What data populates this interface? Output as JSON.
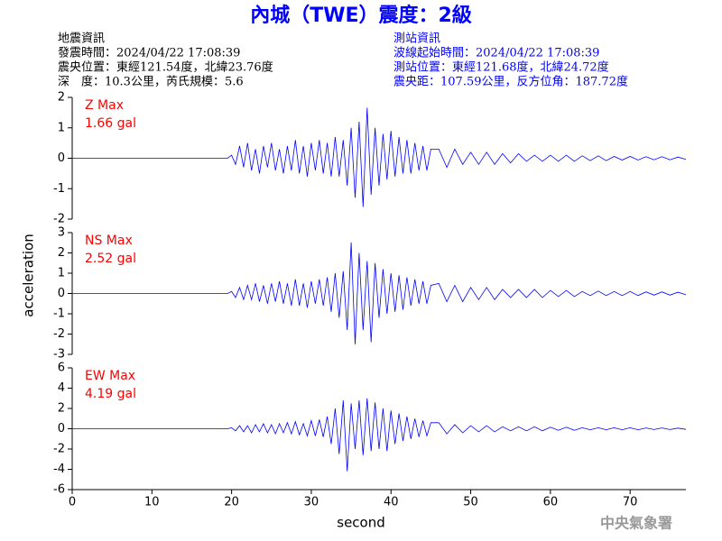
{
  "title": "內城（TWE）震度：2級",
  "quake_info": [
    "地震資訊",
    "發震時間：2024/04/22 17:08:39",
    "震央位置：東經121.54度，北緯23.76度",
    "深　度：10.3公里，芮氏規模：5.6"
  ],
  "station_info": [
    "測站資訊",
    "波線起始時間：2024/04/22 17:08:39",
    "測站位置：東經121.68度，北緯24.72度",
    "震央距：107.59公里，反方位角：187.72度"
  ],
  "footer": "中央氣象署",
  "chart_data": [
    {
      "type": "line",
      "label": "Z Max",
      "max_label": "1.66 gal",
      "color": "#0000ff",
      "label_color": "#ff0000",
      "x": [
        0,
        19.5,
        20,
        20.5,
        21,
        21.5,
        22,
        22.5,
        23,
        23.5,
        24,
        24.5,
        25,
        25.5,
        26,
        26.5,
        27,
        27.5,
        28,
        28.5,
        29,
        29.5,
        30,
        30.5,
        31,
        31.5,
        32,
        32.5,
        33,
        33.5,
        34,
        34.5,
        35,
        35.5,
        36,
        36.5,
        37,
        37.5,
        38,
        38.5,
        39,
        39.5,
        40,
        40.5,
        41,
        41.5,
        42,
        42.5,
        43,
        43.5,
        44,
        44.5,
        45,
        46,
        47,
        48,
        49,
        50,
        51,
        52,
        53,
        54,
        55,
        56,
        57,
        58,
        59,
        60,
        61,
        62,
        63,
        64,
        65,
        66,
        67,
        68,
        69,
        70,
        71,
        72,
        73,
        74,
        75,
        76,
        77
      ],
      "values": [
        0,
        0,
        0.1,
        -0.2,
        0.4,
        -0.3,
        0.5,
        -0.4,
        0.3,
        -0.5,
        0.4,
        -0.3,
        0.5,
        -0.4,
        0.3,
        -0.5,
        0.4,
        -0.4,
        0.6,
        -0.5,
        0.4,
        -0.6,
        0.5,
        -0.4,
        0.6,
        -0.5,
        0.5,
        -0.6,
        0.7,
        -0.6,
        0.6,
        -0.9,
        1.0,
        -1.3,
        1.2,
        -1.6,
        1.66,
        -1.2,
        1.0,
        -0.9,
        0.8,
        -0.7,
        0.9,
        -0.6,
        0.7,
        -0.5,
        0.6,
        -0.5,
        0.5,
        -0.4,
        0.4,
        -0.4,
        0.3,
        0.3,
        -0.3,
        0.3,
        -0.2,
        0.2,
        -0.2,
        0.2,
        -0.2,
        0.15,
        -0.15,
        0.15,
        -0.1,
        0.1,
        -0.1,
        0.1,
        -0.1,
        0.1,
        -0.1,
        0.08,
        -0.08,
        0.08,
        -0.08,
        0.06,
        -0.06,
        0.06,
        -0.06,
        0.05,
        -0.05,
        0.05,
        -0.05,
        0.04,
        -0.04
      ],
      "xlim": [
        0,
        77
      ],
      "ylim": [
        -2,
        2
      ],
      "yticks": [
        -2,
        -1,
        0,
        1,
        2
      ]
    },
    {
      "type": "line",
      "label": "NS Max",
      "max_label": "2.52 gal",
      "color": "#0000ff",
      "label_color": "#ff0000",
      "ylabel": "acceleration",
      "x": [
        0,
        19.5,
        20,
        20.5,
        21,
        21.5,
        22,
        22.5,
        23,
        23.5,
        24,
        24.5,
        25,
        25.5,
        26,
        26.5,
        27,
        27.5,
        28,
        28.5,
        29,
        29.5,
        30,
        30.5,
        31,
        31.5,
        32,
        32.5,
        33,
        33.5,
        34,
        34.5,
        35,
        35.5,
        36,
        36.5,
        37,
        37.5,
        38,
        38.5,
        39,
        39.5,
        40,
        40.5,
        41,
        41.5,
        42,
        42.5,
        43,
        43.5,
        44,
        44.5,
        45,
        46,
        47,
        48,
        49,
        50,
        51,
        52,
        53,
        54,
        55,
        56,
        57,
        58,
        59,
        60,
        61,
        62,
        63,
        64,
        65,
        66,
        67,
        68,
        69,
        70,
        71,
        72,
        73,
        74,
        75,
        76,
        77
      ],
      "values": [
        0,
        0,
        0.1,
        -0.2,
        0.3,
        -0.3,
        0.4,
        -0.3,
        0.5,
        -0.4,
        0.4,
        -0.5,
        0.5,
        -0.4,
        0.6,
        -0.5,
        0.5,
        -0.6,
        0.7,
        -0.6,
        0.5,
        -0.7,
        0.6,
        -0.5,
        0.7,
        -0.6,
        0.8,
        -0.9,
        1.0,
        -1.2,
        1.1,
        -1.8,
        2.52,
        -2.5,
        2.0,
        -1.8,
        1.6,
        -2.4,
        1.5,
        -1.2,
        1.2,
        -1.0,
        1.0,
        -0.9,
        0.9,
        -0.8,
        0.8,
        -0.6,
        0.7,
        -0.5,
        0.6,
        -0.5,
        0.4,
        0.5,
        -0.4,
        0.4,
        -0.4,
        0.3,
        -0.3,
        0.3,
        -0.3,
        0.2,
        -0.2,
        0.2,
        -0.2,
        0.2,
        -0.2,
        0.15,
        -0.15,
        0.15,
        -0.15,
        0.1,
        -0.1,
        0.12,
        -0.1,
        0.1,
        -0.1,
        0.1,
        -0.1,
        0.08,
        -0.08,
        0.08,
        -0.08,
        0.06,
        -0.06
      ],
      "xlim": [
        0,
        77
      ],
      "ylim": [
        -3,
        3
      ],
      "yticks": [
        -3,
        -2,
        -1,
        0,
        1,
        2,
        3
      ]
    },
    {
      "type": "line",
      "label": "EW Max",
      "max_label": "4.19 gal",
      "color": "#0000ff",
      "label_color": "#ff0000",
      "xlabel": "second",
      "x": [
        0,
        19.5,
        20,
        20.5,
        21,
        21.5,
        22,
        22.5,
        23,
        23.5,
        24,
        24.5,
        25,
        25.5,
        26,
        26.5,
        27,
        27.5,
        28,
        28.5,
        29,
        29.5,
        30,
        30.5,
        31,
        31.5,
        32,
        32.5,
        33,
        33.5,
        34,
        34.5,
        35,
        35.5,
        36,
        36.5,
        37,
        37.5,
        38,
        38.5,
        39,
        39.5,
        40,
        40.5,
        41,
        41.5,
        42,
        42.5,
        43,
        43.5,
        44,
        44.5,
        45,
        46,
        47,
        48,
        49,
        50,
        51,
        52,
        53,
        54,
        55,
        56,
        57,
        58,
        59,
        60,
        61,
        62,
        63,
        64,
        65,
        66,
        67,
        68,
        69,
        70,
        71,
        72,
        73,
        74,
        75,
        76,
        77
      ],
      "values": [
        0,
        0,
        0.1,
        -0.2,
        0.3,
        -0.3,
        0.3,
        -0.4,
        0.4,
        -0.3,
        0.5,
        -0.4,
        0.4,
        -0.5,
        0.5,
        -0.4,
        0.6,
        -0.5,
        0.7,
        -0.6,
        0.5,
        -0.7,
        0.8,
        -0.7,
        0.9,
        -0.8,
        1.2,
        -1.5,
        2.0,
        -2.5,
        2.8,
        -4.19,
        2.5,
        -2.0,
        2.8,
        -2.6,
        3.0,
        -2.2,
        2.6,
        -2.0,
        2.0,
        -2.2,
        1.8,
        -1.5,
        1.5,
        -1.2,
        1.2,
        -1.0,
        1.0,
        -0.8,
        0.8,
        -0.7,
        0.6,
        0.6,
        -0.5,
        0.4,
        -0.4,
        0.3,
        -0.3,
        0.3,
        -0.3,
        0.2,
        -0.2,
        0.2,
        -0.2,
        0.2,
        -0.2,
        0.15,
        -0.15,
        0.15,
        -0.15,
        0.1,
        -0.1,
        0.1,
        -0.1,
        0.1,
        -0.1,
        0.1,
        -0.1,
        0.08,
        -0.08,
        0.08,
        -0.08,
        0.06,
        -0.06
      ],
      "xlim": [
        0,
        77
      ],
      "ylim": [
        -6,
        6
      ],
      "yticks": [
        -6,
        -4,
        -2,
        0,
        2,
        4,
        6
      ],
      "xticks": [
        0,
        10,
        20,
        30,
        40,
        50,
        60,
        70
      ]
    }
  ]
}
